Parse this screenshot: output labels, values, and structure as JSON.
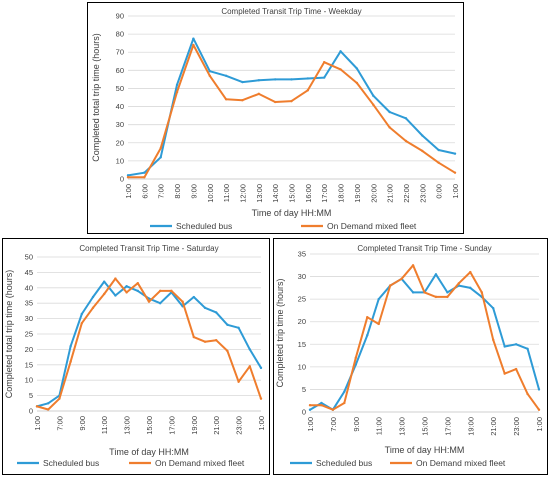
{
  "chart_data": [
    {
      "id": "weekday",
      "type": "line",
      "title": "Completed Transit Trip Time - Weekday",
      "xlabel": "Time of day HH:MM",
      "ylabel": "Completed total trip time (hours)",
      "ylim": [
        0,
        90
      ],
      "yticks": [
        0,
        10,
        20,
        30,
        40,
        50,
        60,
        70,
        80,
        90
      ],
      "x": [
        "1:00",
        "6:00",
        "7:00",
        "8:00",
        "9:00",
        "10:00",
        "11:00",
        "12:00",
        "13:00",
        "14:00",
        "15:00",
        "16:00",
        "17:00",
        "18:00",
        "19:00",
        "20:00",
        "21:00",
        "22:00",
        "23:00",
        "0:00",
        "1:00"
      ],
      "xtick_labels": [
        "1:00",
        "6:00",
        "7:00",
        "8:00",
        "9:00",
        "10:00",
        "11:00",
        "12:00",
        "13:00",
        "14:00",
        "15:00",
        "16:00",
        "17:00",
        "18:00",
        "19:00",
        "20:00",
        "21:00",
        "22:00",
        "23:00",
        "0:00",
        "1:00"
      ],
      "grid": true,
      "legend_position": "bottom",
      "series": [
        {
          "name": "Scheduled bus",
          "color": "#2e9bd6",
          "values": [
            2,
            3.5,
            12,
            52,
            77.5,
            59.5,
            57,
            53.5,
            54.5,
            55,
            55,
            55.5,
            56,
            70.5,
            61,
            46,
            37,
            33.5,
            24,
            16,
            14
          ]
        },
        {
          "name": "On Demand mixed fleet",
          "color": "#ef7d2d",
          "values": [
            1,
            1,
            17,
            48,
            74,
            57,
            44,
            43.5,
            47,
            42.5,
            43,
            49,
            64.5,
            60.5,
            53,
            41,
            28.5,
            21,
            15.5,
            9,
            3.5
          ]
        }
      ]
    },
    {
      "id": "saturday",
      "type": "line",
      "title": "Completed Transit Trip Time - Saturday",
      "xlabel": "Time of day HH:MM",
      "ylabel": "Completed total trip time (hours)",
      "ylim": [
        0,
        50
      ],
      "yticks": [
        0,
        5,
        10,
        15,
        20,
        25,
        30,
        35,
        40,
        45,
        50
      ],
      "x": [
        "1:00",
        "6:00",
        "7:00",
        "8:00",
        "9:00",
        "10:00",
        "11:00",
        "12:00",
        "13:00",
        "14:00",
        "15:00",
        "16:00",
        "17:00",
        "18:00",
        "19:00",
        "20:00",
        "21:00",
        "22:00",
        "23:00",
        "0:00",
        "1:00"
      ],
      "xtick_labels": [
        "1:00",
        "7:00",
        "9:00",
        "11:00",
        "13:00",
        "15:00",
        "17:00",
        "19:00",
        "21:00",
        "23:00",
        "1:00"
      ],
      "grid": true,
      "legend_position": "bottom",
      "series": [
        {
          "name": "Scheduled bus",
          "color": "#2e9bd6",
          "values": [
            1.5,
            2.5,
            5,
            21,
            31.5,
            37,
            42,
            37.5,
            40.5,
            39,
            36.5,
            35,
            38.5,
            34,
            37,
            33.5,
            32,
            28,
            27,
            20,
            14
          ]
        },
        {
          "name": "On Demand mixed fleet",
          "color": "#ef7d2d",
          "values": [
            1.5,
            0.5,
            4,
            16,
            28.5,
            33.5,
            38,
            43,
            38.5,
            41.5,
            35.5,
            39,
            39,
            35.5,
            24,
            22.5,
            23,
            19.5,
            9.5,
            14.5,
            4
          ]
        }
      ]
    },
    {
      "id": "sunday",
      "type": "line",
      "title": "Completed Transit Trip Time - Sunday",
      "xlabel": "Time of day HH:MM",
      "ylabel": "Completed trip time (hours)",
      "ylim": [
        0,
        35
      ],
      "yticks": [
        0,
        5,
        10,
        15,
        20,
        25,
        30,
        35
      ],
      "x": [
        "1:00",
        "6:00",
        "7:00",
        "8:00",
        "9:00",
        "10:00",
        "11:00",
        "12:00",
        "13:00",
        "14:00",
        "15:00",
        "16:00",
        "17:00",
        "18:00",
        "19:00",
        "20:00",
        "21:00",
        "22:00",
        "23:00",
        "0:00",
        "1:00"
      ],
      "xtick_labels": [
        "1:00",
        "7:00",
        "9:00",
        "11:00",
        "13:00",
        "15:00",
        "17:00",
        "19:00",
        "21:00",
        "23:00",
        "1:00"
      ],
      "grid": true,
      "legend_position": "bottom",
      "series": [
        {
          "name": "Scheduled bus",
          "color": "#2e9bd6",
          "values": [
            0.5,
            2,
            0.5,
            4.5,
            10.5,
            17,
            25,
            28,
            29.5,
            26.5,
            26.5,
            30.5,
            26.5,
            28,
            27.5,
            25.5,
            23,
            14.5,
            15,
            14,
            5
          ]
        },
        {
          "name": "On Demand mixed fleet",
          "color": "#ef7d2d",
          "values": [
            1.5,
            1.5,
            0.5,
            2,
            12,
            21,
            19.5,
            28,
            29.5,
            32.5,
            26.5,
            25.5,
            25.5,
            28.5,
            31,
            26.5,
            16,
            8.5,
            9.5,
            4,
            0.5
          ]
        }
      ]
    }
  ]
}
